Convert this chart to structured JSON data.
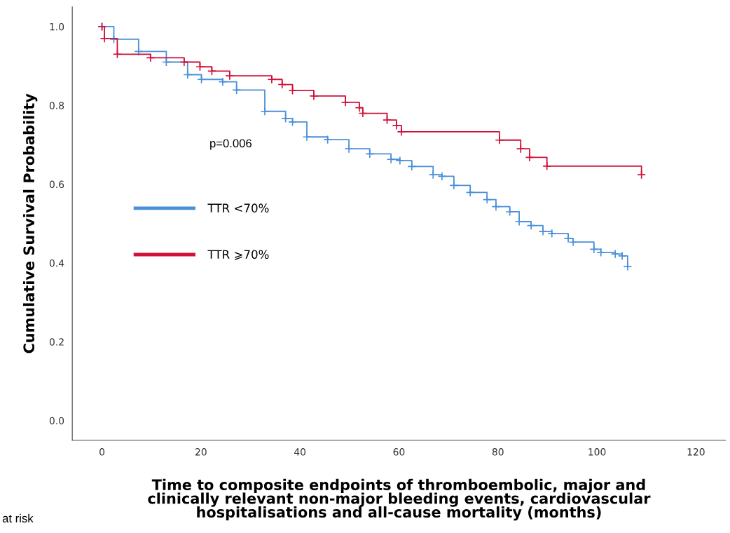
{
  "chart_data": {
    "type": "step",
    "xlabel": "Time to composite endpoints of thromboembolic, major and\nclinically relevant non-major bleeding events, cardiovascular\nhospitalisations and all-cause mortality (months)",
    "ylabel": "Cumulative Survival Probability",
    "series": [
      {
        "name": "TTR <70%",
        "color": "#4a90d9",
        "x": [
          0,
          2.4,
          7.4,
          13,
          17.3,
          20.1,
          24.4,
          27.2,
          32.9,
          37.1,
          38.5,
          41.4,
          45.6,
          49.9,
          54.1,
          58.4,
          60.2,
          62.6,
          66.9,
          68.7,
          71.1,
          74.4,
          77.8,
          79.6,
          82.4,
          84.3,
          86.7,
          89.1,
          90.9,
          94.2,
          95.2,
          99.4,
          100.8,
          103.7,
          105.1,
          106.2
        ],
        "values": [
          1.0,
          0.968,
          0.937,
          0.91,
          0.878,
          0.866,
          0.86,
          0.839,
          0.785,
          0.767,
          0.758,
          0.72,
          0.713,
          0.69,
          0.677,
          0.663,
          0.66,
          0.645,
          0.624,
          0.62,
          0.597,
          0.579,
          0.561,
          0.543,
          0.53,
          0.505,
          0.495,
          0.48,
          0.475,
          0.462,
          0.453,
          0.435,
          0.427,
          0.423,
          0.418,
          0.391
        ]
      },
      {
        "name": "TTR ⩾70%",
        "color": "#d0103a",
        "x": [
          0,
          0.5,
          3.1,
          9.8,
          16.6,
          19.8,
          22.2,
          25.8,
          34.3,
          36.4,
          38.5,
          42.8,
          49.2,
          52.0,
          52.7,
          57.6,
          59.5,
          60.5,
          80.3,
          84.6,
          86.4,
          89.9,
          109.0
        ],
        "values": [
          1.0,
          0.97,
          0.93,
          0.921,
          0.91,
          0.898,
          0.887,
          0.875,
          0.866,
          0.853,
          0.838,
          0.824,
          0.808,
          0.794,
          0.78,
          0.763,
          0.749,
          0.733,
          0.712,
          0.69,
          0.668,
          0.646,
          0.624
        ]
      }
    ],
    "xlim": [
      -6,
      126
    ],
    "xticks": [
      0,
      20,
      40,
      60,
      80,
      100,
      120
    ],
    "ylim": [
      -0.05,
      1.05
    ],
    "yticks": [
      {
        "value": 0,
        "label": "0.0"
      },
      0.2,
      0.4,
      0.6,
      0.8,
      {
        "value": 1,
        "label": "1.0"
      }
    ],
    "marker": "cross",
    "grid": false,
    "legend": "center left",
    "annotations": [
      "p=0.006",
      "at risk"
    ]
  }
}
